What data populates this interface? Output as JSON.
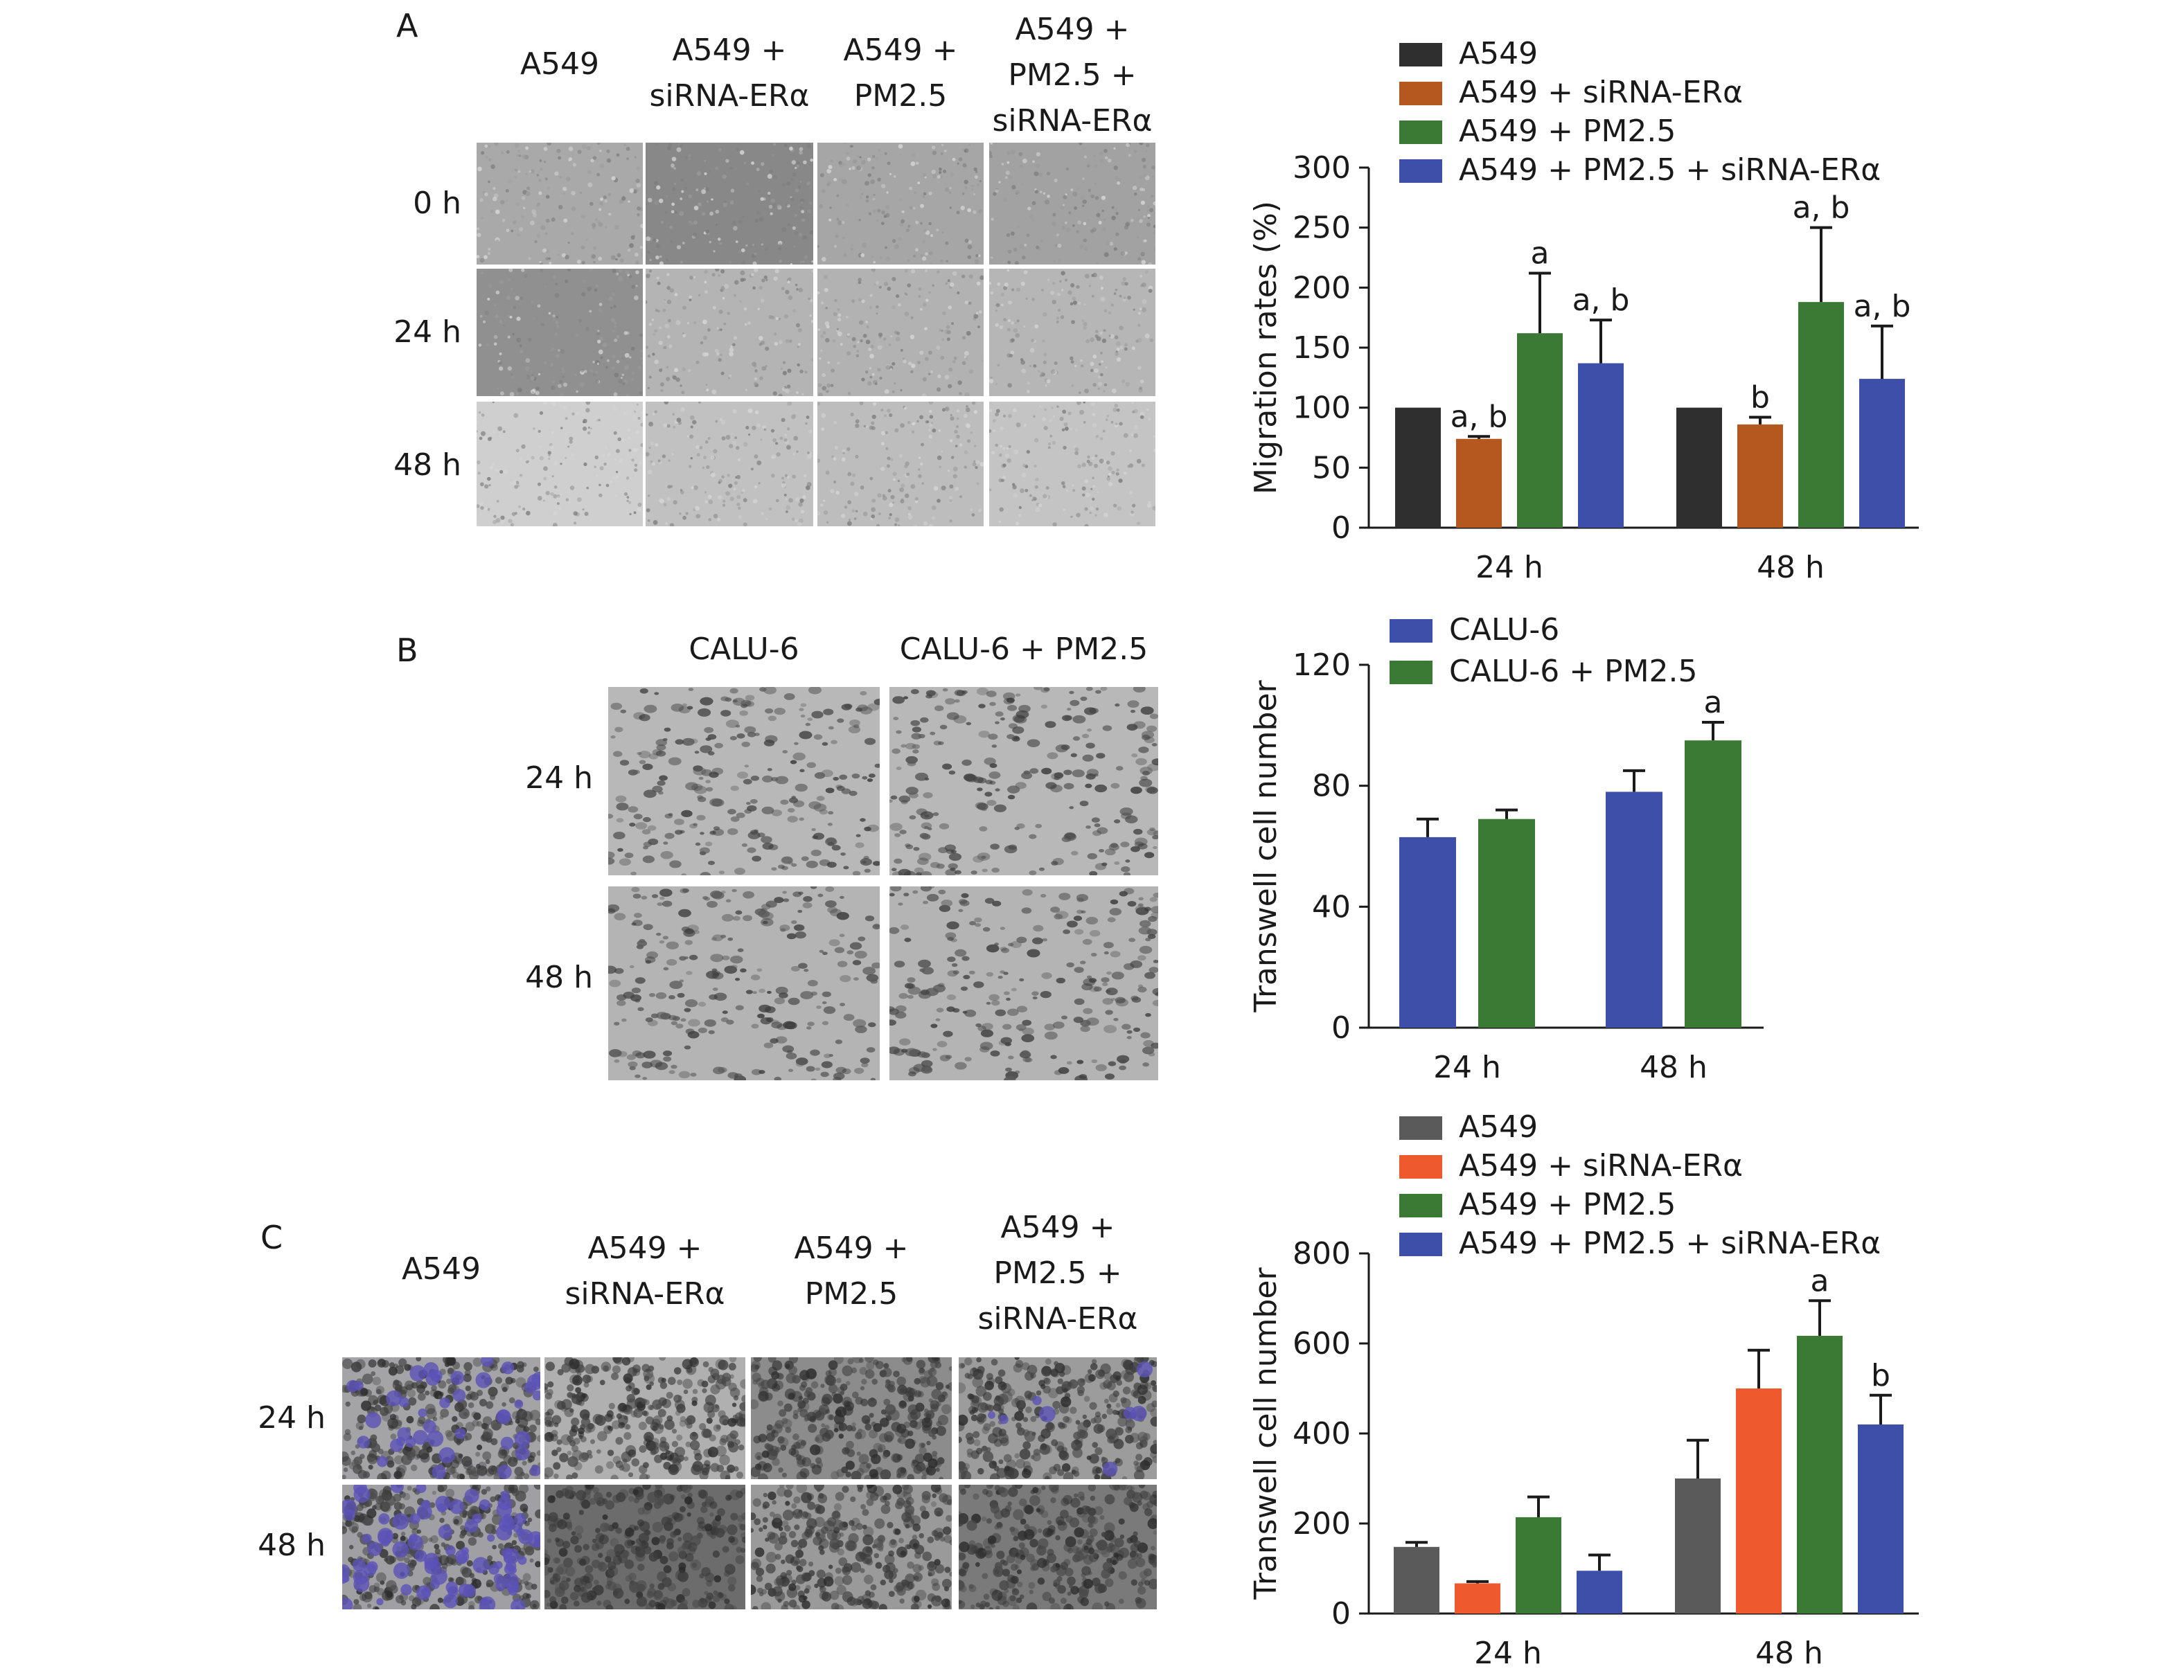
{
  "panels": {
    "A": {
      "letter": "A",
      "columns": [
        "A549",
        "A549 +\nsiRNA-ERα",
        "A549 +\nPM2.5",
        "A549 +\nPM2.5 +\nsiRNA-ERα"
      ],
      "rows": [
        "0 h",
        "24 h",
        "48 h"
      ]
    },
    "B": {
      "letter": "B",
      "columns": [
        "CALU-6",
        "CALU-6 + PM2.5"
      ],
      "rows": [
        "24 h",
        "48 h"
      ]
    },
    "C": {
      "letter": "C",
      "columns": [
        "A549",
        "A549 +\nsiRNA-ERα",
        "A549 +\nPM2.5",
        "A549 +\nPM2.5 +\nsiRNA-ERα"
      ],
      "rows": [
        "24 h",
        "48 h"
      ]
    }
  },
  "colors": {
    "a549": "#2f2f2f",
    "a549_c": "#5a5a5a",
    "sirna_a": "#b5581f",
    "sirna_c": "#ee5a2e",
    "pm25": "#3a7a35",
    "pm25_sirna": "#3d4fa8",
    "calu6": "#3d4fa8",
    "calu6_pm25": "#3a7a35"
  },
  "chart_data": [
    {
      "id": "A",
      "type": "bar",
      "ylabel": "Migration rates (%)",
      "ylim": [
        0,
        300
      ],
      "yticks": [
        0,
        50,
        100,
        150,
        200,
        250,
        300
      ],
      "categories": [
        "24 h",
        "48 h"
      ],
      "legend_position": "top",
      "series": [
        {
          "name": "A549",
          "color": "#2f2f2f",
          "values": [
            100,
            100
          ],
          "errors": [
            0,
            0
          ],
          "annotations": [
            "",
            ""
          ]
        },
        {
          "name": "A549 + siRNA-ERα",
          "color": "#b5581f",
          "values": [
            74,
            86
          ],
          "errors": [
            2,
            6
          ],
          "annotations": [
            "a, b",
            "b"
          ]
        },
        {
          "name": "A549 + PM2.5",
          "color": "#3a7a35",
          "values": [
            162,
            188
          ],
          "errors": [
            50,
            62
          ],
          "annotations": [
            "a",
            "a, b"
          ]
        },
        {
          "name": "A549 + PM2.5 + siRNA-ERα",
          "color": "#3d4fa8",
          "values": [
            137,
            124
          ],
          "errors": [
            36,
            44
          ],
          "annotations": [
            "a, b",
            "a, b"
          ]
        }
      ]
    },
    {
      "id": "B",
      "type": "bar",
      "ylabel": "Transwell cell number",
      "ylim": [
        0,
        120
      ],
      "yticks": [
        0,
        40,
        80,
        120
      ],
      "categories": [
        "24 h",
        "48 h"
      ],
      "legend_position": "top",
      "series": [
        {
          "name": "CALU-6",
          "color": "#3d4fa8",
          "values": [
            63,
            78
          ],
          "errors": [
            6,
            7
          ],
          "annotations": [
            "",
            ""
          ]
        },
        {
          "name": "CALU-6 + PM2.5",
          "color": "#3a7a35",
          "values": [
            69,
            95
          ],
          "errors": [
            3,
            6
          ],
          "annotations": [
            "",
            "a"
          ]
        }
      ]
    },
    {
      "id": "C",
      "type": "bar",
      "ylabel": "Transwell cell number",
      "ylim": [
        0,
        800
      ],
      "yticks": [
        0,
        200,
        400,
        600,
        800
      ],
      "categories": [
        "24 h",
        "48 h"
      ],
      "legend_position": "top",
      "series": [
        {
          "name": "A549",
          "color": "#5a5a5a",
          "values": [
            148,
            300
          ],
          "errors": [
            10,
            85
          ],
          "annotations": [
            "",
            ""
          ]
        },
        {
          "name": "A549 + siRNA-ERα",
          "color": "#ee5a2e",
          "values": [
            67,
            500
          ],
          "errors": [
            4,
            85
          ],
          "annotations": [
            "",
            ""
          ]
        },
        {
          "name": "A549 + PM2.5",
          "color": "#3a7a35",
          "values": [
            214,
            617
          ],
          "errors": [
            45,
            78
          ],
          "annotations": [
            "",
            "a"
          ]
        },
        {
          "name": "A549 + PM2.5 + siRNA-ERα",
          "color": "#3d4fa8",
          "values": [
            95,
            420
          ],
          "errors": [
            35,
            65
          ],
          "annotations": [
            "",
            "b"
          ]
        }
      ]
    }
  ]
}
